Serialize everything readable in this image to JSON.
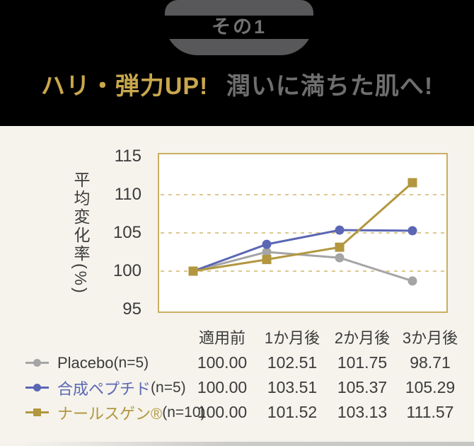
{
  "header": {
    "badge_label": "その1",
    "title_gold": "ハリ・弾力UP!",
    "title_gray": "潤いに満ちた肌へ!"
  },
  "colors": {
    "background_black": "#000000",
    "background_cream": "#f5f3ec",
    "badge_gray": "#58585a",
    "headline_gold": "#c9a74c",
    "headline_gray": "#6e6e6e",
    "plot_border_gold": "#c9af62",
    "grid_gold": "#dcc88e",
    "series_gray": "#a5a5a5",
    "series_blue": "#5b67b4",
    "series_gold": "#b2973f",
    "text_dark": "#3b3b3b",
    "plot_background": "#ffffff"
  },
  "chart_data": {
    "type": "line",
    "title": "ハリ・弾力UP! 潤いに満ちた肌へ!",
    "x_categories": [
      "適用前",
      "1か月後",
      "2か月後",
      "3か月後"
    ],
    "ylabel": "平均変化率(%)",
    "yticks": [
      115,
      110,
      105,
      100,
      95
    ],
    "ylim": [
      95,
      115
    ],
    "gridlines": [
      110,
      105,
      100
    ],
    "grid_style": "dashed",
    "legend_position": "bottom-table",
    "series": [
      {
        "name": "Placebo",
        "n_label": "(n=5)",
        "color": "#a5a5a5",
        "marker": "circle",
        "values": [
          100.0,
          102.51,
          101.75,
          98.71
        ]
      },
      {
        "name": "合成ペプチド",
        "n_label": "(n=5)",
        "color": "#5b67b4",
        "marker": "circle",
        "values": [
          100.0,
          103.51,
          105.37,
          105.29
        ]
      },
      {
        "name": "ナールスゲン®",
        "n_label": "(n=10)",
        "color": "#b2973f",
        "marker": "square",
        "values": [
          100.0,
          101.52,
          103.13,
          111.57
        ]
      }
    ]
  },
  "table": {
    "headers": [
      "適用前",
      "1か月後",
      "2か月後",
      "3か月後"
    ],
    "rows": [
      {
        "label": "Placebo ",
        "n": "(n=5)",
        "label_color": "#3b3b3b",
        "values": [
          "100.00",
          "102.51",
          "101.75",
          "98.71"
        ]
      },
      {
        "label": "合成ペプチド",
        "n": "(n=5)",
        "label_color": "#5b67b4",
        "values": [
          "100.00",
          "103.51",
          "105.37",
          "105.29"
        ]
      },
      {
        "label": "ナールスゲン®",
        "n": "(n=10)",
        "label_color": "#b2973f",
        "values": [
          "100.00",
          "101.52",
          "103.13",
          "111.57"
        ]
      }
    ]
  }
}
